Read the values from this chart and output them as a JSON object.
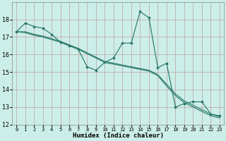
{
  "xlabel": "Humidex (Indice chaleur)",
  "background_color": "#cceee8",
  "grid_color": "#bb9999",
  "line_color": "#2a7a6a",
  "xlim": [
    -0.5,
    23.5
  ],
  "ylim": [
    12,
    19
  ],
  "yticks": [
    12,
    13,
    14,
    15,
    16,
    17,
    18
  ],
  "xticks": [
    0,
    1,
    2,
    3,
    4,
    5,
    6,
    7,
    8,
    9,
    10,
    11,
    12,
    13,
    14,
    15,
    16,
    17,
    18,
    19,
    20,
    21,
    22,
    23
  ],
  "series_jagged": [
    17.3,
    17.8,
    17.6,
    17.5,
    17.15,
    16.7,
    16.5,
    16.3,
    15.3,
    15.1,
    15.55,
    15.8,
    16.65,
    16.65,
    18.45,
    18.1,
    15.25,
    15.5,
    13.0,
    13.2,
    13.3,
    13.3,
    12.6,
    12.5
  ],
  "series_lin1": [
    17.3,
    17.3,
    17.15,
    17.05,
    16.9,
    16.75,
    16.55,
    16.35,
    16.1,
    15.85,
    15.6,
    15.5,
    15.4,
    15.3,
    15.2,
    15.1,
    14.85,
    14.3,
    13.75,
    13.35,
    13.1,
    12.85,
    12.6,
    12.45
  ],
  "series_lin2": [
    17.3,
    17.25,
    17.1,
    17.0,
    16.85,
    16.7,
    16.5,
    16.3,
    16.05,
    15.8,
    15.55,
    15.45,
    15.35,
    15.25,
    15.15,
    15.05,
    14.8,
    14.2,
    13.65,
    13.25,
    13.0,
    12.75,
    12.5,
    12.38
  ]
}
